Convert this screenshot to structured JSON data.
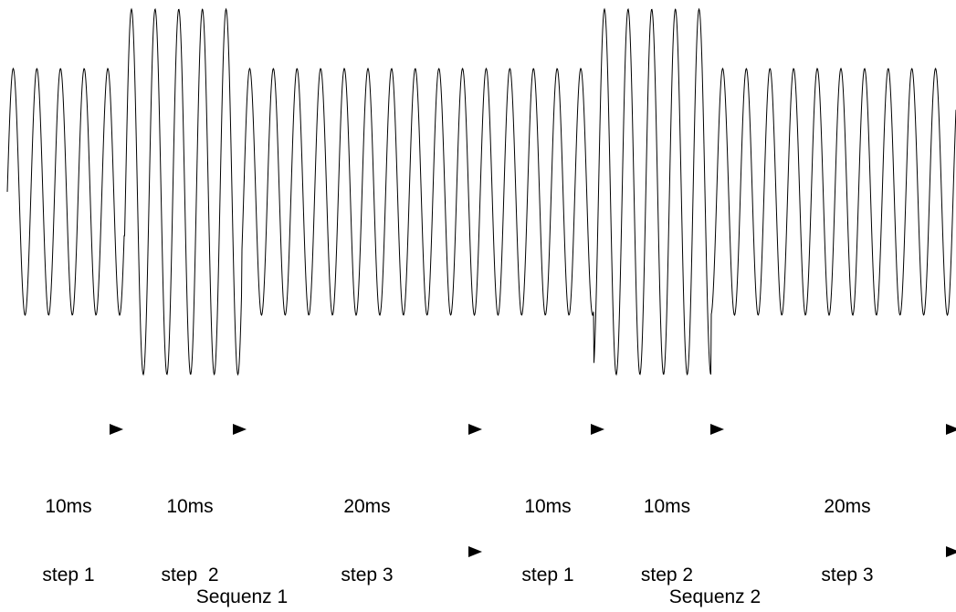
{
  "waveform": {
    "color": "#000000",
    "segments": [
      {
        "name": "step 1",
        "duration_ms": 10,
        "amplitude": "low"
      },
      {
        "name": "step 2",
        "duration_ms": 10,
        "amplitude": "high"
      },
      {
        "name": "step 3",
        "duration_ms": 20,
        "amplitude": "low"
      },
      {
        "name": "step 1",
        "duration_ms": 10,
        "amplitude": "low"
      },
      {
        "name": "step 2",
        "duration_ms": 10,
        "amplitude": "high"
      },
      {
        "name": "step 3",
        "duration_ms": 20,
        "amplitude": "low"
      }
    ]
  },
  "steps": [
    {
      "duration": "10ms",
      "label": "step 1"
    },
    {
      "duration": "10ms",
      "label": "step  2"
    },
    {
      "duration": "20ms",
      "label": "step 3"
    },
    {
      "duration": "10ms",
      "label": "step 1"
    },
    {
      "duration": "10ms",
      "label": "step 2"
    },
    {
      "duration": "20ms",
      "label": "step 3"
    }
  ],
  "sequences": [
    {
      "label": "Sequenz 1"
    },
    {
      "label": "Sequenz 2"
    }
  ]
}
